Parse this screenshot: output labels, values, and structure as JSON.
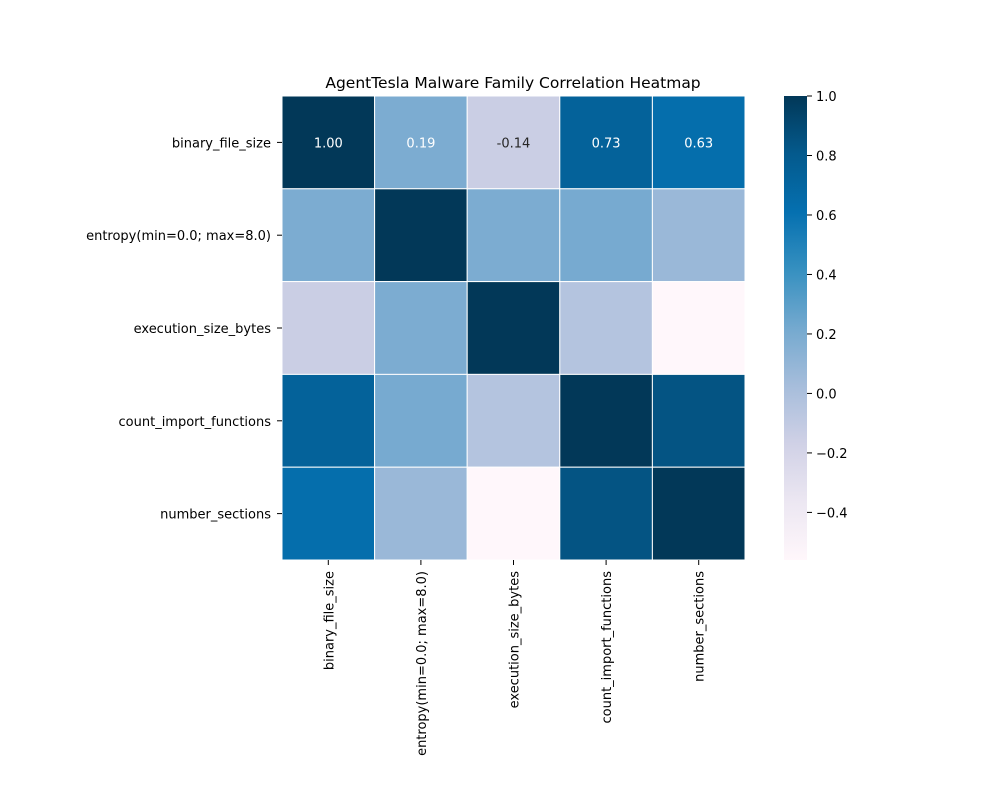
{
  "chart_data": {
    "type": "heatmap",
    "title": "AgentTesla Malware Family Correlation Heatmap",
    "x_labels": [
      "binary_file_size",
      "entropy(min=0.0; max=8.0)",
      "execution_size_bytes",
      "count_import_functions",
      "number_sections"
    ],
    "y_labels": [
      "binary_file_size",
      "entropy(min=0.0; max=8.0)",
      "execution_size_bytes",
      "count_import_functions",
      "number_sections"
    ],
    "values": [
      [
        1.0,
        0.19,
        -0.14,
        0.73,
        0.63
      ],
      [
        0.19,
        1.0,
        0.19,
        0.21,
        0.07
      ],
      [
        -0.14,
        0.19,
        1.0,
        -0.04,
        -0.56
      ],
      [
        0.73,
        0.21,
        -0.04,
        1.0,
        0.84
      ],
      [
        0.63,
        0.07,
        -0.56,
        0.84,
        1.0
      ]
    ],
    "annotated_row": 0,
    "annotations": [
      "1.00",
      "0.19",
      "-0.14",
      "0.73",
      "0.63"
    ],
    "colormap": "PuBu",
    "colormap_stops": [
      "#fff7fb",
      "#ece7f2",
      "#d0d1e6",
      "#a6bddb",
      "#74a9cf",
      "#3690c0",
      "#0570b0",
      "#045a8d",
      "#023858"
    ],
    "vmin": -0.56,
    "vmax": 1.0,
    "colorbar_ticks": [
      {
        "value": 1.0,
        "label": "1.0"
      },
      {
        "value": 0.8,
        "label": "0.8"
      },
      {
        "value": 0.6,
        "label": "0.6"
      },
      {
        "value": 0.4,
        "label": "0.4"
      },
      {
        "value": 0.2,
        "label": "0.2"
      },
      {
        "value": 0.0,
        "label": "0.0"
      },
      {
        "value": -0.2,
        "label": "−0.2"
      },
      {
        "value": -0.4,
        "label": "−0.4"
      }
    ],
    "grid": true
  }
}
